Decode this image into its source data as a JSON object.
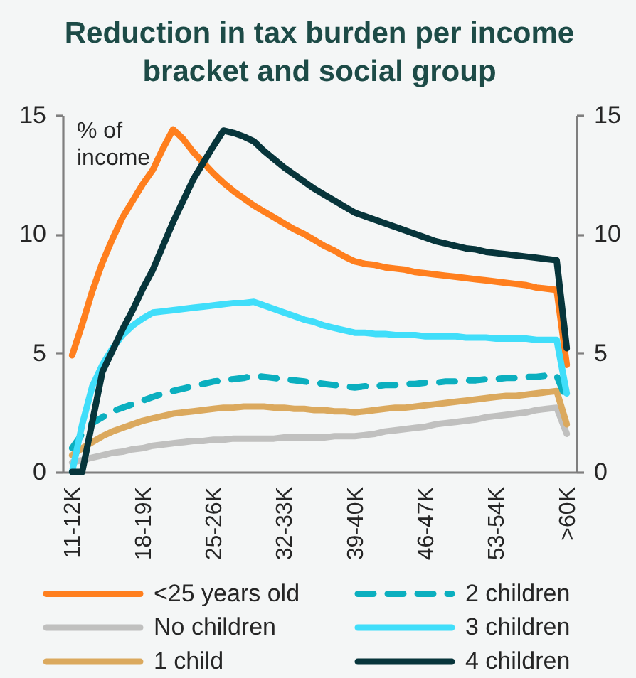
{
  "chart_data": {
    "type": "line",
    "title": "Reduction in tax burden per income bracket and social group",
    "ylabel": "% of income",
    "categories": [
      "11-12K",
      null,
      null,
      null,
      null,
      null,
      null,
      "18-19K",
      null,
      null,
      null,
      null,
      null,
      null,
      "25-26K",
      null,
      null,
      null,
      null,
      null,
      null,
      "32-33K",
      null,
      null,
      null,
      null,
      null,
      null,
      "39-40K",
      null,
      null,
      null,
      null,
      null,
      null,
      "46-47K",
      null,
      null,
      null,
      null,
      null,
      null,
      "53-54K",
      null,
      null,
      null,
      null,
      null,
      null,
      ">60K"
    ],
    "series": [
      {
        "name": "<25 years old",
        "color": "#ff7f1e",
        "values": [
          4.9,
          6.2,
          7.6,
          8.8,
          9.8,
          10.7,
          11.4,
          12.1,
          12.7,
          13.6,
          14.4,
          14.0,
          13.45,
          13.0,
          12.55,
          12.15,
          11.8,
          11.5,
          11.2,
          10.95,
          10.7,
          10.45,
          10.2,
          10.0,
          9.75,
          9.5,
          9.3,
          9.05,
          8.85,
          8.75,
          8.7,
          8.6,
          8.55,
          8.5,
          8.4,
          8.35,
          8.3,
          8.25,
          8.2,
          8.15,
          8.1,
          8.05,
          8.0,
          7.95,
          7.9,
          7.85,
          7.75,
          7.7,
          7.65,
          4.5
        ]
      },
      {
        "name": "No children",
        "color": "#c0c0bf",
        "values": [
          0.4,
          0.5,
          0.6,
          0.7,
          0.8,
          0.85,
          0.95,
          1.0,
          1.1,
          1.15,
          1.2,
          1.25,
          1.3,
          1.3,
          1.35,
          1.35,
          1.4,
          1.4,
          1.4,
          1.4,
          1.4,
          1.45,
          1.45,
          1.45,
          1.45,
          1.45,
          1.5,
          1.5,
          1.5,
          1.55,
          1.6,
          1.7,
          1.75,
          1.8,
          1.85,
          1.9,
          2.0,
          2.05,
          2.1,
          2.15,
          2.2,
          2.3,
          2.35,
          2.4,
          2.45,
          2.5,
          2.6,
          2.65,
          2.7,
          1.6
        ]
      },
      {
        "name": "1 child",
        "color": "#dba95e",
        "values": [
          0.7,
          1.0,
          1.25,
          1.5,
          1.7,
          1.85,
          2.0,
          2.15,
          2.25,
          2.35,
          2.45,
          2.5,
          2.55,
          2.6,
          2.65,
          2.7,
          2.7,
          2.75,
          2.75,
          2.75,
          2.7,
          2.7,
          2.65,
          2.65,
          2.6,
          2.6,
          2.55,
          2.55,
          2.5,
          2.55,
          2.6,
          2.65,
          2.7,
          2.7,
          2.75,
          2.8,
          2.85,
          2.9,
          2.95,
          3.0,
          3.05,
          3.1,
          3.15,
          3.2,
          3.2,
          3.25,
          3.3,
          3.35,
          3.4,
          2.0
        ]
      },
      {
        "name": "2 children",
        "color": "#0bafbf",
        "line_style": "dashed",
        "values": [
          1.0,
          1.6,
          2.05,
          2.3,
          2.55,
          2.7,
          2.85,
          3.0,
          3.15,
          3.3,
          3.4,
          3.5,
          3.6,
          3.7,
          3.8,
          3.85,
          3.9,
          3.95,
          4.05,
          4.0,
          3.95,
          3.9,
          3.85,
          3.8,
          3.75,
          3.7,
          3.65,
          3.6,
          3.55,
          3.6,
          3.6,
          3.65,
          3.65,
          3.7,
          3.7,
          3.75,
          3.75,
          3.8,
          3.8,
          3.85,
          3.85,
          3.9,
          3.9,
          3.95,
          3.95,
          4.0,
          4.0,
          4.05,
          4.05,
          3.0
        ]
      },
      {
        "name": "3 children",
        "color": "#40defa",
        "values": [
          0,
          2.0,
          3.6,
          4.5,
          5.2,
          5.75,
          6.15,
          6.45,
          6.7,
          6.75,
          6.8,
          6.85,
          6.9,
          6.95,
          7.0,
          7.05,
          7.1,
          7.1,
          7.15,
          7.0,
          6.85,
          6.7,
          6.55,
          6.4,
          6.3,
          6.15,
          6.05,
          5.95,
          5.85,
          5.85,
          5.8,
          5.8,
          5.75,
          5.75,
          5.75,
          5.7,
          5.7,
          5.7,
          5.7,
          5.65,
          5.65,
          5.65,
          5.6,
          5.6,
          5.6,
          5.6,
          5.55,
          5.55,
          5.55,
          3.3
        ]
      },
      {
        "name": "4 children",
        "color": "#07353b",
        "values": [
          0,
          0,
          2.1,
          4.2,
          5.1,
          6.0,
          6.8,
          7.7,
          8.5,
          9.5,
          10.5,
          11.4,
          12.3,
          13.0,
          13.7,
          14.35,
          14.25,
          14.1,
          13.9,
          13.5,
          13.15,
          12.8,
          12.5,
          12.2,
          11.9,
          11.65,
          11.4,
          11.15,
          10.9,
          10.75,
          10.6,
          10.45,
          10.3,
          10.15,
          10.0,
          9.85,
          9.7,
          9.6,
          9.5,
          9.4,
          9.35,
          9.25,
          9.2,
          9.15,
          9.1,
          9.05,
          9.0,
          8.95,
          8.9,
          5.2
        ]
      }
    ],
    "ylim": [
      0,
      15
    ],
    "yticks": [
      0,
      5,
      10,
      15
    ],
    "y2lim": [
      0,
      15
    ],
    "y2ticks": [
      0,
      5,
      10,
      15
    ],
    "legend": "bottom"
  }
}
